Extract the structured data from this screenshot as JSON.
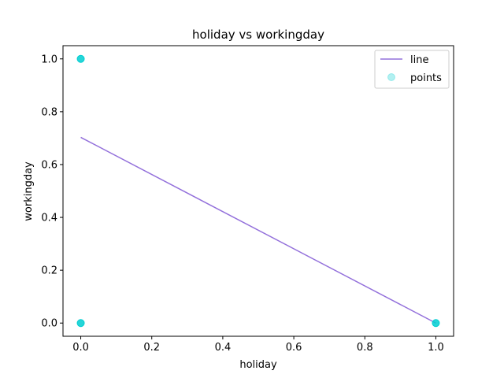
{
  "chart_data": {
    "type": "scatter",
    "title": "holiday vs workingday",
    "xlabel": "holiday",
    "ylabel": "workingday",
    "xlim": [
      -0.05,
      1.05
    ],
    "ylim": [
      -0.05,
      1.05
    ],
    "xticks": [
      0.0,
      0.2,
      0.4,
      0.6,
      0.8,
      1.0
    ],
    "yticks": [
      0.0,
      0.2,
      0.4,
      0.6,
      0.8,
      1.0
    ],
    "xtick_labels": [
      "0.0",
      "0.2",
      "0.4",
      "0.6",
      "0.8",
      "1.0"
    ],
    "ytick_labels": [
      "0.0",
      "0.2",
      "0.4",
      "0.6",
      "0.8",
      "1.0"
    ],
    "legend_position": "top-right",
    "grid": false,
    "series": [
      {
        "name": "line",
        "kind": "line",
        "color": "#9370db",
        "x": [
          0,
          1
        ],
        "y": [
          0.703,
          0.0
        ]
      },
      {
        "name": "points",
        "kind": "scatter",
        "color": "#00ced1",
        "x": [
          0,
          0,
          1
        ],
        "y": [
          1,
          0,
          0
        ]
      }
    ]
  }
}
